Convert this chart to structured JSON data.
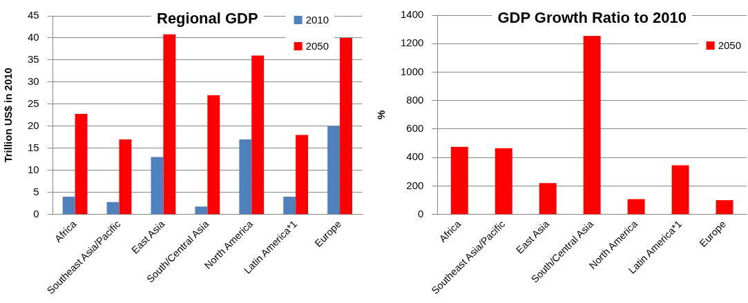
{
  "chart_data": [
    {
      "type": "bar",
      "title": "Regional GDP",
      "ylabel": "Trillion US$ in 2010",
      "categories": [
        "Africa",
        "Southeast Asia/Pacific",
        "East Asia",
        "South/Central Asia",
        "North America",
        "Latin America*1",
        "Europe"
      ],
      "series": [
        {
          "name": "2010",
          "color": "#4f81bd",
          "values": [
            4,
            2.8,
            13,
            1.8,
            17,
            4,
            20
          ]
        },
        {
          "name": "2050",
          "color": "#ff0000",
          "values": [
            22.8,
            17,
            40.8,
            27,
            36,
            18,
            40
          ]
        }
      ],
      "ylim": [
        0,
        45
      ],
      "yticks": [
        0,
        5,
        10,
        15,
        20,
        25,
        30,
        35,
        40,
        45
      ],
      "grid": "y",
      "legend": "top right"
    },
    {
      "type": "bar",
      "title": "GDP Growth Ratio to 2010",
      "ylabel": "%",
      "categories": [
        "Africa",
        "Southeast Asia/Pacific",
        "East Asia",
        "South/Central Asia",
        "North America",
        "Latin America*1",
        "Europe"
      ],
      "series": [
        {
          "name": "2050",
          "color": "#ff0000",
          "values": [
            475,
            465,
            220,
            1255,
            108,
            345,
            100
          ]
        }
      ],
      "ylim": [
        0,
        1400
      ],
      "yticks": [
        0,
        200,
        400,
        600,
        800,
        1000,
        1200,
        1400
      ],
      "grid": "y",
      "legend": "top right"
    }
  ]
}
